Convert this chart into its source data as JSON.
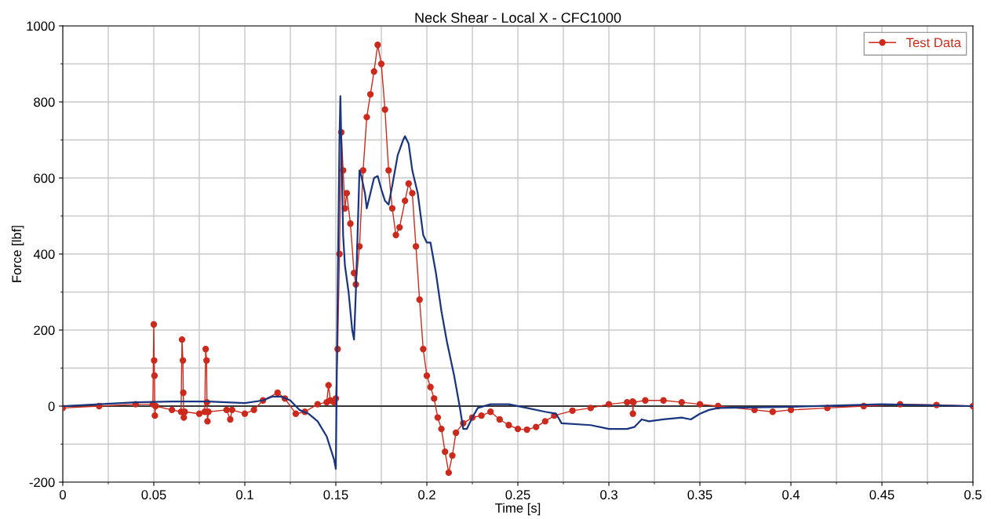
{
  "chart_data": {
    "type": "line",
    "title": "Neck Shear - Local X - CFC1000",
    "xlabel": "Time [s]",
    "ylabel": "Force [lbf]",
    "xlim": [
      0,
      0.5
    ],
    "xticks": [
      0,
      0.05,
      0.1,
      0.15,
      0.2,
      0.25,
      0.3,
      0.35,
      0.4,
      0.45,
      0.5
    ],
    "ylim": [
      -200,
      1000
    ],
    "yticks": [
      -200,
      0,
      200,
      400,
      600,
      800,
      1000
    ],
    "grid": true,
    "legend": "top right",
    "ref_lines": [
      {
        "axis": "y",
        "value": 0,
        "color": "#000000"
      }
    ],
    "series": [
      {
        "name": "Test Data",
        "color": "#cc2a1c",
        "marker": "circle",
        "x": [
          0,
          0.02,
          0.04,
          0.0495,
          0.05,
          0.0502,
          0.0504,
          0.0506,
          0.051,
          0.06,
          0.065,
          0.0655,
          0.066,
          0.0662,
          0.0665,
          0.067,
          0.075,
          0.078,
          0.0785,
          0.079,
          0.0792,
          0.0795,
          0.08,
          0.09,
          0.092,
          0.093,
          0.1,
          0.105,
          0.11,
          0.118,
          0.122,
          0.128,
          0.133,
          0.14,
          0.145,
          0.146,
          0.147,
          0.149,
          0.15,
          0.151,
          0.152,
          0.153,
          0.154,
          0.155,
          0.156,
          0.158,
          0.16,
          0.161,
          0.163,
          0.165,
          0.167,
          0.169,
          0.171,
          0.173,
          0.175,
          0.177,
          0.179,
          0.181,
          0.183,
          0.185,
          0.188,
          0.19,
          0.192,
          0.194,
          0.196,
          0.198,
          0.2,
          0.202,
          0.204,
          0.206,
          0.208,
          0.21,
          0.212,
          0.214,
          0.216,
          0.22,
          0.225,
          0.23,
          0.235,
          0.24,
          0.245,
          0.25,
          0.255,
          0.26,
          0.265,
          0.27,
          0.28,
          0.29,
          0.3,
          0.31,
          0.313,
          0.3132,
          0.3135,
          0.32,
          0.33,
          0.34,
          0.35,
          0.36,
          0.38,
          0.39,
          0.4,
          0.42,
          0.44,
          0.46,
          0.48,
          0.5
        ],
        "values": [
          -5,
          0,
          5,
          5,
          215,
          120,
          80,
          -25,
          0,
          -10,
          -15,
          175,
          120,
          35,
          -30,
          -15,
          -20,
          -15,
          150,
          120,
          10,
          -40,
          -15,
          -10,
          -35,
          -10,
          -20,
          -10,
          15,
          35,
          20,
          -20,
          -15,
          5,
          10,
          55,
          15,
          10,
          20,
          150,
          400,
          720,
          620,
          520,
          560,
          480,
          350,
          320,
          420,
          620,
          760,
          820,
          880,
          950,
          900,
          780,
          620,
          520,
          450,
          470,
          540,
          585,
          560,
          420,
          280,
          150,
          80,
          50,
          20,
          -30,
          -60,
          -120,
          -175,
          -130,
          -70,
          -45,
          -30,
          -25,
          -15,
          -35,
          -50,
          -60,
          -62,
          -55,
          -40,
          -25,
          -12,
          -5,
          5,
          10,
          12,
          -20,
          10,
          15,
          15,
          10,
          5,
          0,
          -10,
          -15,
          -10,
          -5,
          0,
          5,
          3,
          0
        ]
      },
      {
        "color": "#1a3580",
        "marker": "none",
        "x": [
          0,
          0.02,
          0.04,
          0.06,
          0.08,
          0.1,
          0.11,
          0.115,
          0.12,
          0.125,
          0.13,
          0.135,
          0.14,
          0.145,
          0.149,
          0.15,
          0.151,
          0.152,
          0.1525,
          0.153,
          0.154,
          0.155,
          0.157,
          0.159,
          0.16,
          0.161,
          0.163,
          0.164,
          0.166,
          0.167,
          0.169,
          0.171,
          0.173,
          0.175,
          0.177,
          0.179,
          0.181,
          0.184,
          0.187,
          0.188,
          0.19,
          0.192,
          0.195,
          0.198,
          0.2,
          0.202,
          0.205,
          0.208,
          0.211,
          0.215,
          0.218,
          0.22,
          0.222,
          0.225,
          0.228,
          0.235,
          0.245,
          0.255,
          0.265,
          0.271,
          0.274,
          0.29,
          0.3,
          0.31,
          0.314,
          0.318,
          0.322,
          0.33,
          0.34,
          0.345,
          0.35,
          0.355,
          0.36,
          0.4,
          0.45,
          0.5
        ],
        "values": [
          0,
          5,
          10,
          12,
          12,
          8,
          15,
          25,
          25,
          15,
          -10,
          -20,
          -40,
          -80,
          -140,
          -165,
          300,
          700,
          815,
          700,
          450,
          370,
          300,
          200,
          175,
          300,
          620,
          605,
          560,
          520,
          560,
          600,
          605,
          570,
          540,
          530,
          580,
          660,
          700,
          710,
          690,
          620,
          560,
          450,
          430,
          430,
          350,
          250,
          170,
          80,
          0,
          -60,
          -60,
          -30,
          -5,
          5,
          5,
          -5,
          -15,
          -20,
          -45,
          -50,
          -60,
          -60,
          -55,
          -35,
          -40,
          -35,
          -30,
          -35,
          -20,
          -10,
          -5,
          -2,
          5,
          0
        ]
      }
    ]
  }
}
